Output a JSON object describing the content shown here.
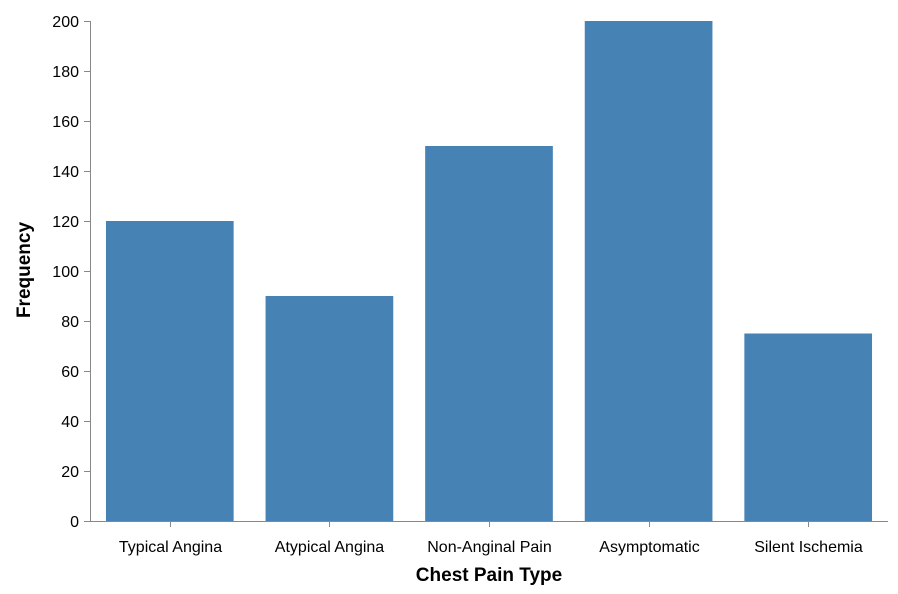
{
  "chart_data": {
    "type": "bar",
    "categories": [
      "Typical Angina",
      "Atypical Angina",
      "Non-Anginal Pain",
      "Asymptomatic",
      "Silent Ischemia"
    ],
    "values": [
      120,
      90,
      150,
      200,
      75
    ],
    "xlabel": "Chest Pain Type",
    "ylabel": "Frequency",
    "ylim": [
      0,
      200
    ],
    "yticks": [
      0,
      20,
      40,
      60,
      80,
      100,
      120,
      140,
      160,
      180,
      200
    ],
    "grid": false,
    "bar_color": "#4682b4",
    "axis_color": "#888888"
  }
}
